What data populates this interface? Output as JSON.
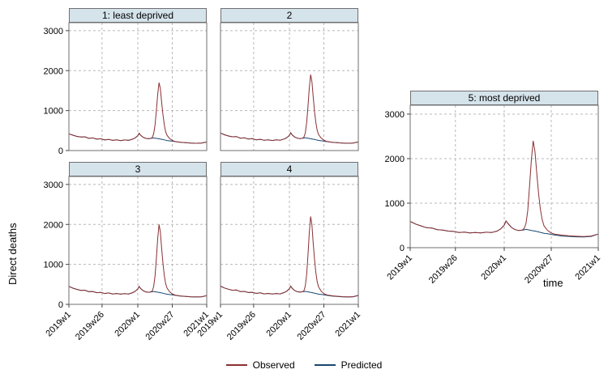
{
  "figure": {
    "ylabel": "Direct deaths",
    "xlabel": "time"
  },
  "legend": {
    "items": [
      {
        "label": "Observed",
        "color": "#8a3033"
      },
      {
        "label": "Predicted",
        "color": "#1a476f"
      }
    ]
  },
  "chart_data": {
    "type": "line",
    "title": "",
    "ylabel": "Direct deaths",
    "xlabel": "time",
    "ylim": [
      0,
      3200
    ],
    "xlim": [
      0,
      104
    ],
    "y_ticks": [
      0,
      1000,
      2000,
      3000
    ],
    "x_ticks": {
      "values": [
        0,
        25,
        52,
        78,
        104
      ],
      "labels": [
        "2019w1",
        "2019w26",
        "2020w1",
        "2020w27",
        "2021w1"
      ]
    },
    "grid": "dashed",
    "legend_position": "bottom-center",
    "x_unit": "weeks since 2019w1",
    "colors": {
      "observed": "#8a3033",
      "predicted": "#1a476f",
      "panel_header_bg": "#d5e3eb",
      "grid_line": "#b8b8b8",
      "panel_border": "#6f6f6f",
      "axis": "#444444"
    },
    "x": [
      0,
      3,
      6,
      9,
      12,
      15,
      18,
      21,
      24,
      27,
      30,
      33,
      36,
      39,
      42,
      45,
      48,
      50,
      52,
      53,
      54,
      56,
      58,
      60,
      62,
      63,
      64,
      65,
      66,
      67,
      68,
      69,
      70,
      71,
      72,
      73,
      74,
      76,
      78,
      80,
      84,
      88,
      92,
      96,
      100,
      104
    ],
    "panels": [
      {
        "title": "1: least deprived",
        "show_y_labels": true,
        "show_x_labels": false,
        "observed": [
          420,
          385,
          355,
          340,
          345,
          305,
          315,
          285,
          295,
          265,
          280,
          255,
          268,
          250,
          266,
          256,
          286,
          316,
          372,
          432,
          386,
          332,
          306,
          296,
          306,
          332,
          424,
          648,
          1002,
          1400,
          1700,
          1552,
          1204,
          882,
          642,
          472,
          382,
          302,
          256,
          226,
          206,
          196,
          186,
          182,
          186,
          212
        ],
        "predicted": [
          420,
          385,
          355,
          340,
          345,
          305,
          315,
          285,
          295,
          265,
          280,
          255,
          268,
          250,
          266,
          256,
          286,
          316,
          372,
          432,
          386,
          332,
          306,
          296,
          306,
          308,
          316,
          310,
          304,
          300,
          294,
          288,
          282,
          276,
          268,
          260,
          252,
          244,
          234,
          224,
          206,
          196,
          186,
          182,
          186,
          212
        ]
      },
      {
        "title": "2",
        "show_y_labels": false,
        "show_x_labels": false,
        "observed": [
          440,
          395,
          365,
          345,
          350,
          310,
          318,
          288,
          298,
          268,
          282,
          258,
          270,
          252,
          268,
          258,
          290,
          320,
          380,
          445,
          395,
          338,
          310,
          300,
          310,
          338,
          440,
          700,
          1100,
          1560,
          1900,
          1720,
          1330,
          960,
          690,
          500,
          400,
          310,
          260,
          230,
          208,
          198,
          188,
          184,
          188,
          215
        ],
        "predicted": [
          440,
          395,
          365,
          345,
          350,
          310,
          318,
          288,
          298,
          268,
          282,
          258,
          270,
          252,
          268,
          258,
          290,
          320,
          380,
          445,
          395,
          338,
          310,
          300,
          310,
          312,
          320,
          314,
          308,
          302,
          296,
          290,
          284,
          277,
          269,
          261,
          253,
          245,
          235,
          225,
          207,
          197,
          187,
          183,
          187,
          215
        ]
      },
      {
        "title": "3",
        "show_y_labels": true,
        "show_x_labels": true,
        "observed": [
          450,
          405,
          375,
          350,
          355,
          315,
          322,
          292,
          300,
          272,
          285,
          260,
          272,
          255,
          270,
          260,
          292,
          324,
          385,
          450,
          400,
          342,
          312,
          302,
          312,
          342,
          450,
          720,
          1150,
          1640,
          2000,
          1810,
          1400,
          1010,
          720,
          520,
          410,
          315,
          262,
          232,
          210,
          200,
          190,
          186,
          190,
          218
        ],
        "predicted": [
          450,
          405,
          375,
          350,
          355,
          315,
          322,
          292,
          300,
          272,
          285,
          260,
          272,
          255,
          270,
          260,
          292,
          324,
          385,
          450,
          400,
          342,
          312,
          302,
          312,
          315,
          322,
          316,
          310,
          304,
          298,
          292,
          285,
          278,
          270,
          262,
          254,
          246,
          236,
          226,
          208,
          198,
          188,
          184,
          188,
          218
        ]
      },
      {
        "title": "4",
        "show_y_labels": false,
        "show_x_labels": true,
        "observed": [
          455,
          410,
          378,
          352,
          358,
          318,
          325,
          295,
          302,
          274,
          288,
          262,
          274,
          257,
          272,
          262,
          295,
          328,
          390,
          455,
          405,
          345,
          315,
          305,
          315,
          345,
          460,
          750,
          1230,
          1790,
          2200,
          1980,
          1520,
          1100,
          780,
          560,
          435,
          330,
          270,
          238,
          214,
          202,
          192,
          188,
          192,
          222
        ],
        "predicted": [
          455,
          410,
          378,
          352,
          358,
          318,
          325,
          295,
          302,
          274,
          288,
          262,
          274,
          257,
          272,
          262,
          295,
          328,
          390,
          455,
          405,
          345,
          315,
          305,
          315,
          318,
          325,
          318,
          312,
          306,
          300,
          293,
          286,
          279,
          271,
          263,
          255,
          247,
          237,
          227,
          209,
          199,
          189,
          185,
          189,
          222
        ]
      },
      {
        "title": "5: most deprived",
        "show_y_labels": true,
        "show_x_labels": true,
        "observed": [
          590,
          530,
          490,
          450,
          440,
          405,
          395,
          372,
          365,
          342,
          350,
          332,
          342,
          330,
          348,
          340,
          372,
          420,
          505,
          600,
          545,
          455,
          405,
          385,
          395,
          430,
          540,
          830,
          1380,
          1980,
          2400,
          2160,
          1660,
          1210,
          860,
          630,
          490,
          385,
          330,
          302,
          282,
          266,
          256,
          250,
          262,
          305
        ],
        "predicted": [
          590,
          530,
          490,
          450,
          440,
          405,
          395,
          372,
          365,
          342,
          350,
          332,
          342,
          330,
          348,
          340,
          372,
          420,
          505,
          600,
          545,
          455,
          405,
          385,
          395,
          400,
          412,
          404,
          396,
          388,
          380,
          372,
          363,
          354,
          344,
          334,
          324,
          314,
          298,
          284,
          262,
          252,
          244,
          240,
          252,
          305
        ]
      }
    ]
  }
}
